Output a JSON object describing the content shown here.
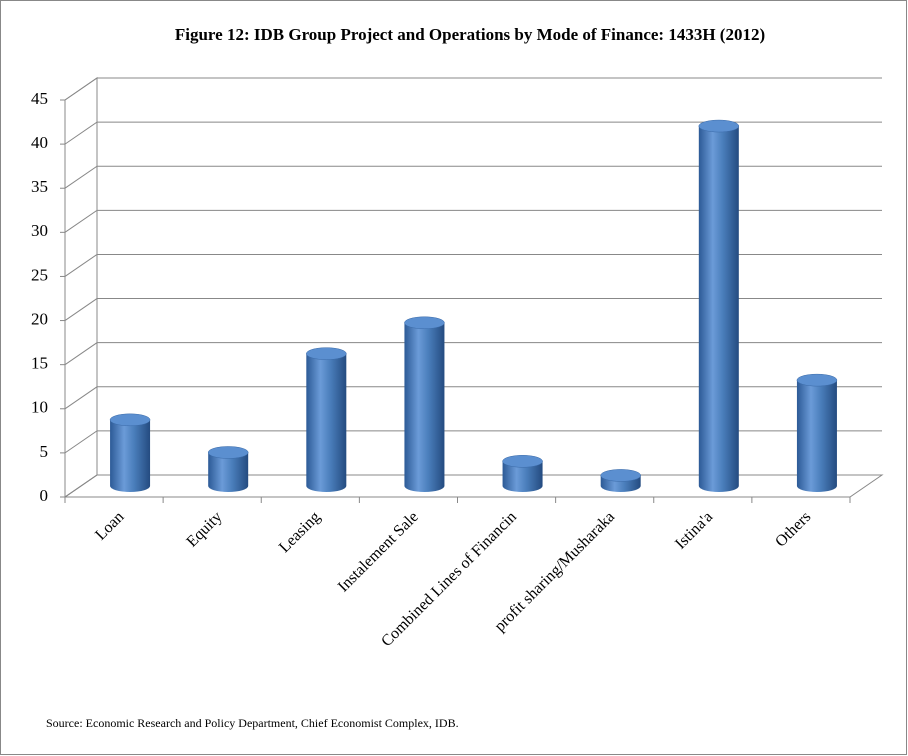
{
  "chart_data": {
    "type": "bar3d",
    "title": "Figure 12: IDB Group Project and Operations by Mode of Finance: 1433H (2012)",
    "categories": [
      "Loan",
      "Equity",
      "Leasing",
      "Instalement Sale",
      "Combined Lines of Financin",
      "profit sharing/Musharaka",
      "Istina'a",
      "Others"
    ],
    "values": [
      7.5,
      3.8,
      15,
      18.5,
      2.8,
      1.2,
      40.8,
      12
    ],
    "color": "#4a7ebb",
    "ylim": [
      0,
      45
    ],
    "yticks": [
      0,
      5,
      10,
      15,
      20,
      25,
      30,
      35,
      40,
      45
    ],
    "grid": true,
    "source": "Source: Economic Research and Policy Department, Chief Economist Complex, IDB."
  }
}
